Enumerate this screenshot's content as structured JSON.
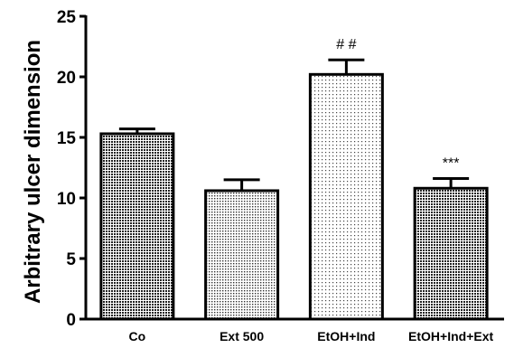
{
  "chart_data": {
    "type": "bar",
    "categories": [
      "Co",
      "Ext 500",
      "EtOH+Ind",
      "EtOH+Ind+Ext"
    ],
    "values": [
      15.3,
      10.6,
      20.2,
      10.8
    ],
    "errors": [
      0.4,
      0.9,
      1.2,
      0.8
    ],
    "annotations": [
      "",
      "",
      "# #",
      "***"
    ],
    "ylabel": "Arbitrary ulcer dimension",
    "xlabel": "",
    "ylim": [
      0,
      25
    ],
    "yticks": [
      0,
      5,
      10,
      15,
      20,
      25
    ],
    "patterns": [
      "dense-dots",
      "medium-dots",
      "light-dots",
      "dense-dots"
    ],
    "grid": false
  }
}
